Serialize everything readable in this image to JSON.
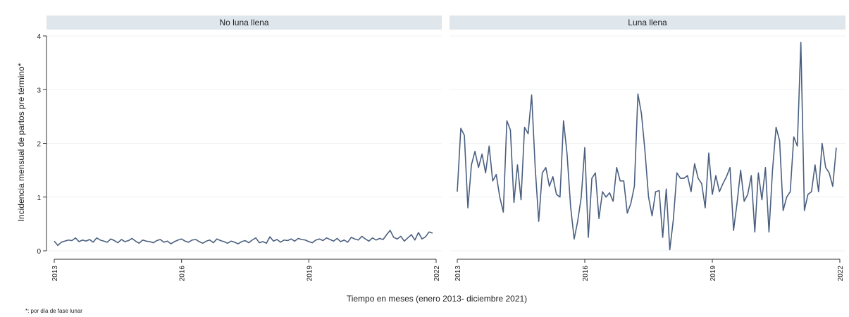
{
  "chart_data": {
    "type": "line",
    "ylabel": "Incidencia mensual de partos pre término*",
    "xlabel": "Tiempo en meses (enero 2013- diciembre 2021)",
    "note": "*: por día de fase lunar",
    "xlim": [
      2013,
      2022
    ],
    "ylim": [
      0,
      4
    ],
    "x_ticks": [
      "2013",
      "2016",
      "2019",
      "2022"
    ],
    "y_ticks": [
      "0",
      "1",
      "2",
      "3",
      "4"
    ],
    "x_start": 2013,
    "x_step": 0.08333,
    "grid": true,
    "panels": [
      {
        "title": "No luna llena",
        "values": [
          0.18,
          0.1,
          0.16,
          0.18,
          0.2,
          0.19,
          0.24,
          0.17,
          0.2,
          0.18,
          0.21,
          0.16,
          0.24,
          0.2,
          0.18,
          0.16,
          0.22,
          0.19,
          0.15,
          0.21,
          0.17,
          0.19,
          0.23,
          0.18,
          0.14,
          0.2,
          0.18,
          0.17,
          0.15,
          0.19,
          0.21,
          0.16,
          0.18,
          0.13,
          0.17,
          0.2,
          0.22,
          0.18,
          0.16,
          0.2,
          0.21,
          0.17,
          0.14,
          0.18,
          0.2,
          0.15,
          0.22,
          0.19,
          0.17,
          0.14,
          0.18,
          0.16,
          0.13,
          0.17,
          0.19,
          0.15,
          0.2,
          0.24,
          0.15,
          0.17,
          0.14,
          0.26,
          0.18,
          0.21,
          0.16,
          0.2,
          0.19,
          0.22,
          0.18,
          0.23,
          0.21,
          0.2,
          0.17,
          0.15,
          0.2,
          0.22,
          0.19,
          0.24,
          0.21,
          0.18,
          0.23,
          0.17,
          0.2,
          0.16,
          0.25,
          0.22,
          0.2,
          0.27,
          0.22,
          0.18,
          0.24,
          0.2,
          0.23,
          0.21,
          0.3,
          0.38,
          0.25,
          0.22,
          0.27,
          0.18,
          0.24,
          0.3,
          0.2,
          0.34,
          0.22,
          0.26,
          0.35,
          0.33
        ]
      },
      {
        "title": "Luna llena",
        "values": [
          1.1,
          2.28,
          2.15,
          0.8,
          1.6,
          1.85,
          1.55,
          1.8,
          1.45,
          1.95,
          1.3,
          1.42,
          1.0,
          0.72,
          2.42,
          2.25,
          0.9,
          1.6,
          0.95,
          2.3,
          2.18,
          2.9,
          1.55,
          0.55,
          1.45,
          1.55,
          1.2,
          1.38,
          1.05,
          1.0,
          2.42,
          1.8,
          0.82,
          0.22,
          0.55,
          1.0,
          1.92,
          0.25,
          1.35,
          1.45,
          0.6,
          1.1,
          1.0,
          1.08,
          0.92,
          1.55,
          1.3,
          1.3,
          0.7,
          0.88,
          1.2,
          2.92,
          2.55,
          1.85,
          1.0,
          0.65,
          1.1,
          1.12,
          0.25,
          1.15,
          0.02,
          0.58,
          1.45,
          1.35,
          1.35,
          1.4,
          1.1,
          1.62,
          1.35,
          1.25,
          0.8,
          1.82,
          1.05,
          1.4,
          1.1,
          1.25,
          1.38,
          1.55,
          0.38,
          0.9,
          1.5,
          0.92,
          1.05,
          1.4,
          0.35,
          1.45,
          0.95,
          1.55,
          0.35,
          1.5,
          2.3,
          2.05,
          0.75,
          1.0,
          1.1,
          2.12,
          1.95,
          3.88,
          0.75,
          1.05,
          1.1,
          1.6,
          1.1,
          2.0,
          1.55,
          1.45,
          1.2,
          1.92
        ]
      }
    ]
  }
}
